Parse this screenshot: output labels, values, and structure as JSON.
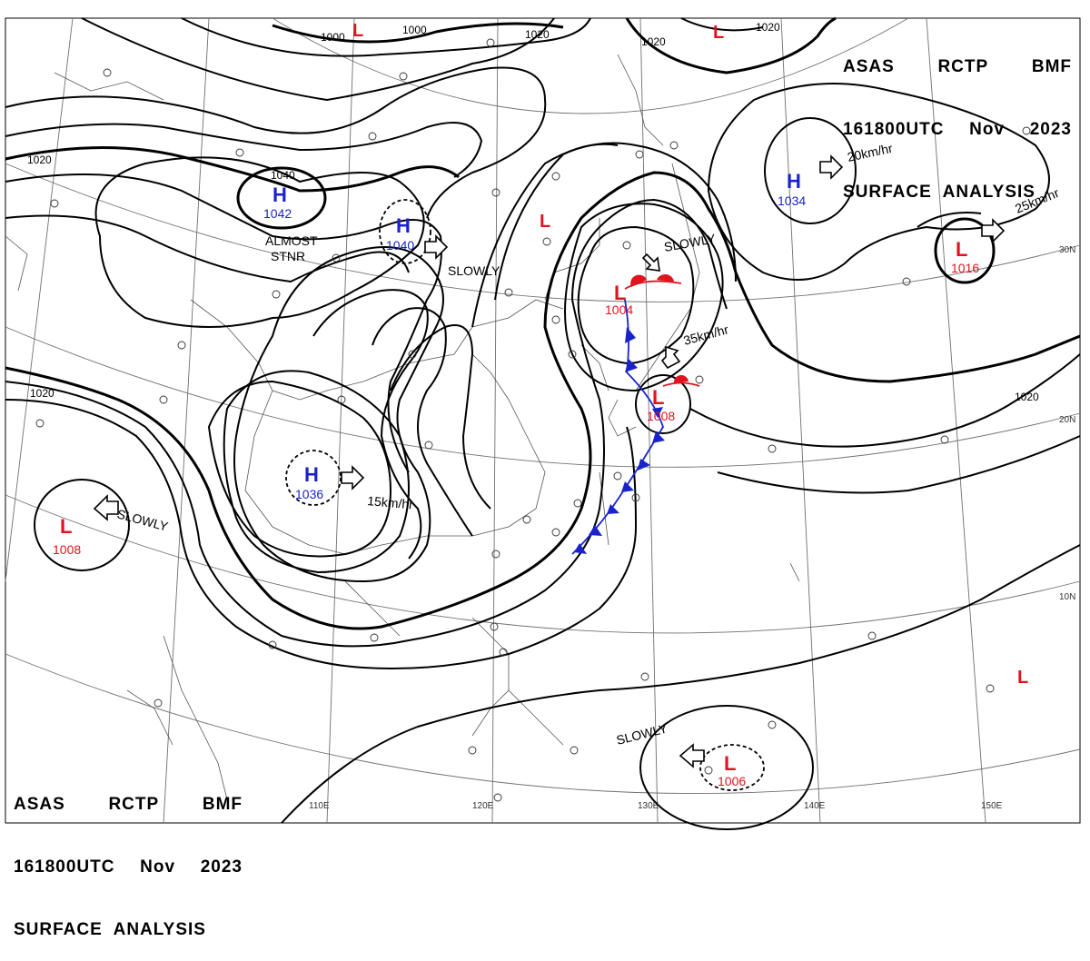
{
  "header": {
    "line1": [
      "ASAS",
      "RCTP",
      "BMF"
    ],
    "line2": [
      "161800UTC",
      "Nov",
      "2023"
    ],
    "line3": "SURFACE  ANALYSIS"
  },
  "lon_labels": [
    "110E",
    "120E",
    "130E",
    "140E",
    "150E"
  ],
  "lat_labels": [
    "30N",
    "20N",
    "10N"
  ],
  "isobar_labels": [
    "1000",
    "1000",
    "1020",
    "1020",
    "1020",
    "1020",
    "1020",
    "1020",
    "1040"
  ],
  "pressure_centers": [
    {
      "type": "H",
      "value": "1042",
      "color": "#1a23c9"
    },
    {
      "type": "H",
      "value": "1040",
      "color": "#1a23c9"
    },
    {
      "type": "H",
      "value": "1036",
      "color": "#1a23c9"
    },
    {
      "type": "H",
      "value": "1034",
      "color": "#1a23c9"
    },
    {
      "type": "L",
      "value": "1004",
      "color": "#e0141e"
    },
    {
      "type": "L",
      "value": "1008",
      "color": "#e0141e"
    },
    {
      "type": "L",
      "value": "1008",
      "color": "#e0141e"
    },
    {
      "type": "L",
      "value": "1016",
      "color": "#e0141e"
    },
    {
      "type": "L",
      "value": "1006",
      "color": "#e0141e"
    },
    {
      "type": "L",
      "value": "",
      "color": "#e0141e"
    },
    {
      "type": "L",
      "value": "",
      "color": "#e0141e"
    },
    {
      "type": "L",
      "value": "",
      "color": "#e0141e"
    },
    {
      "type": "L",
      "value": "",
      "color": "#e0141e"
    }
  ],
  "movements": [
    "ALMOST",
    "STNR",
    "SLOWLY",
    "SLOWLY",
    "SLOWLY",
    "SLOWLY",
    "15km/hr",
    "20km/hr",
    "25km/hr",
    "35km/hr"
  ],
  "colors": {
    "high": "#1a23c9",
    "low": "#e0141e",
    "cold_front": "#1a23c9",
    "warm_front": "#e0141e",
    "grid": "#707070",
    "coast": "#555555"
  }
}
